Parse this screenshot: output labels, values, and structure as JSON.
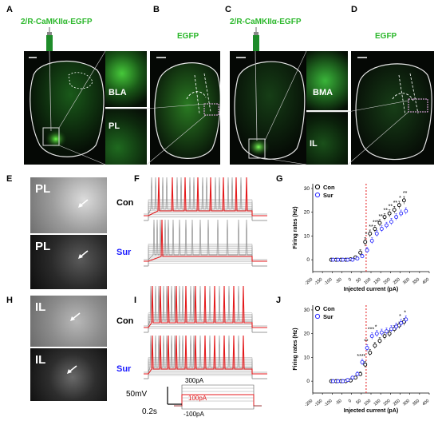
{
  "panel_letters": [
    "A",
    "B",
    "C",
    "D",
    "E",
    "F",
    "G",
    "H",
    "I",
    "J"
  ],
  "titles": {
    "A": "2/R-CaMKIIα-EGFP",
    "B": "EGFP",
    "C": "2/R-CaMKIIα-EGFP",
    "D": "EGFP"
  },
  "region_labels": {
    "bla": "BLA",
    "pl": "PL",
    "bma": "BMA",
    "il": "IL",
    "e_top": "PL",
    "e_bottom": "PL",
    "h_top": "IL",
    "h_bottom": "IL"
  },
  "trace_labels": {
    "con": "Con",
    "sur": "Sur",
    "con_color": "#000000",
    "sur_color": "#1a1aff"
  },
  "protocol": {
    "top": "300pA",
    "mid": "100pA",
    "bottom": "-100pA",
    "mid_color": "#e41a1c",
    "scale_v": "50mV",
    "scale_t": "0.2s"
  },
  "chart_data": [
    {
      "panel": "G",
      "type": "scatter",
      "xlabel": "Injected current (pA)",
      "ylabel": "Firing rates (Hz)",
      "xlim": [
        -200,
        400
      ],
      "ylim": [
        -5,
        32
      ],
      "xticks": [
        "-200",
        "-150",
        "-100",
        "-50",
        "0",
        "50",
        "100",
        "150",
        "200",
        "250",
        "300",
        "350",
        "400"
      ],
      "yticks": [
        "0",
        "10",
        "20",
        "30"
      ],
      "legend": [
        "Con",
        "Sur"
      ],
      "legend_position": "top-left",
      "vline_x": 75,
      "x": [
        -100,
        -75,
        -50,
        -25,
        0,
        25,
        50,
        75,
        100,
        125,
        150,
        175,
        200,
        225,
        250,
        275
      ],
      "series": [
        {
          "name": "Con",
          "color": "#000000",
          "values": [
            0,
            0,
            0,
            0,
            0.2,
            1,
            3,
            7.5,
            11,
            13,
            15.5,
            18,
            19.5,
            21,
            23,
            25
          ],
          "err": [
            0,
            0,
            0,
            0,
            0.3,
            0.6,
            1.2,
            1.8,
            1.5,
            1.4,
            1.4,
            1.4,
            1.5,
            1.5,
            1.6,
            1.6
          ]
        },
        {
          "name": "Sur",
          "color": "#2b2bff",
          "values": [
            0,
            0,
            0,
            0,
            0,
            0.5,
            1.5,
            4,
            8,
            11,
            13,
            14.5,
            16,
            18,
            19.5,
            20.5
          ],
          "err": [
            0,
            0,
            0,
            0,
            0,
            0.4,
            0.8,
            1.2,
            1.3,
            1.3,
            1.3,
            1.3,
            1.4,
            1.4,
            1.4,
            1.4
          ]
        }
      ],
      "significance": [
        {
          "x": 75,
          "label": "*"
        },
        {
          "x": 100,
          "label": "**"
        },
        {
          "x": 125,
          "label": "***"
        },
        {
          "x": 150,
          "label": "**"
        },
        {
          "x": 175,
          "label": "**"
        },
        {
          "x": 200,
          "label": "**"
        },
        {
          "x": 225,
          "label": "**"
        },
        {
          "x": 250,
          "label": "*"
        },
        {
          "x": 275,
          "label": "**"
        }
      ]
    },
    {
      "panel": "J",
      "type": "scatter",
      "xlabel": "Injected current (pA)",
      "ylabel": "Firing rates (Hz)",
      "xlim": [
        -200,
        400
      ],
      "ylim": [
        -5,
        32
      ],
      "xticks": [
        "-200",
        "-150",
        "-100",
        "-50",
        "0",
        "50",
        "100",
        "150",
        "200",
        "250",
        "300",
        "350",
        "400"
      ],
      "yticks": [
        "0",
        "10",
        "20",
        "30"
      ],
      "legend": [
        "Con",
        "Sur"
      ],
      "legend_position": "top-left",
      "vline_x": 75,
      "x": [
        -100,
        -75,
        -50,
        -25,
        0,
        25,
        50,
        75,
        100,
        125,
        150,
        175,
        200,
        225,
        250,
        275
      ],
      "series": [
        {
          "name": "Con",
          "color": "#000000",
          "values": [
            0,
            0,
            0,
            0,
            0.3,
            1.5,
            3,
            7,
            12,
            15,
            17,
            19,
            20,
            22,
            23.5,
            25
          ],
          "err": [
            0,
            0,
            0,
            0,
            0.3,
            0.6,
            0.9,
            1.2,
            1.3,
            1.3,
            1.3,
            1.4,
            1.4,
            1.4,
            1.4,
            1.5
          ]
        },
        {
          "name": "Sur",
          "color": "#2b2bff",
          "values": [
            0,
            0,
            0,
            0.5,
            1.5,
            3,
            8,
            14,
            19,
            20,
            20.5,
            21,
            22,
            23,
            24.5,
            26
          ],
          "err": [
            0,
            0,
            0,
            0.4,
            0.6,
            0.9,
            1.2,
            1.4,
            1.4,
            1.4,
            1.4,
            1.4,
            1.4,
            1.5,
            1.5,
            1.5
          ]
        }
      ],
      "significance": [
        {
          "x": 50,
          "label": "****"
        },
        {
          "x": 75,
          "label": "**"
        },
        {
          "x": 100,
          "label": "***"
        },
        {
          "x": 125,
          "label": "*"
        },
        {
          "x": 250,
          "label": "*"
        },
        {
          "x": 275,
          "label": "*"
        }
      ]
    }
  ]
}
